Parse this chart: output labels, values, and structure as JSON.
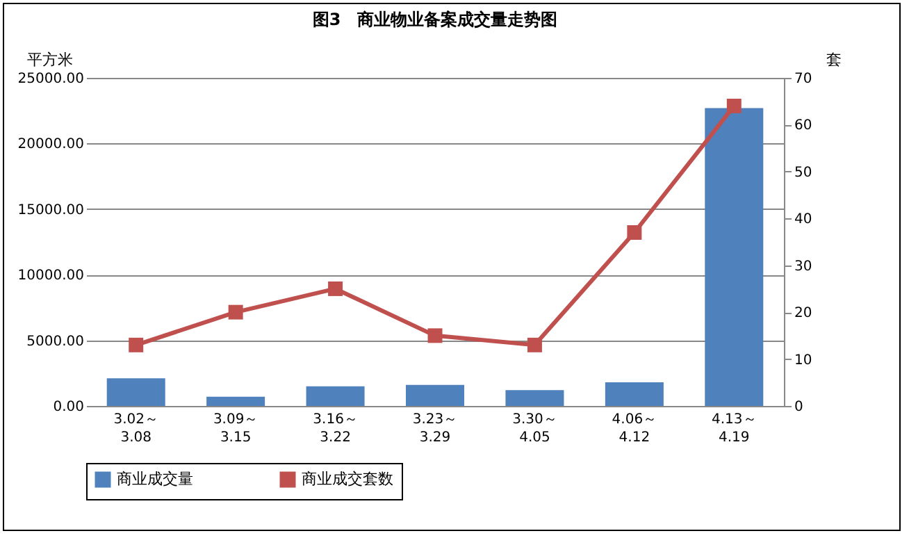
{
  "chart_data": {
    "type": "bar",
    "title": "图3　商业物业备案成交量走势图",
    "ylabel": "平方米",
    "y2label": "套",
    "categories": [
      "3.02～3.08",
      "3.09～3.15",
      "3.16～3.22",
      "3.23～3.29",
      "3.30～4.05",
      "4.06～4.12",
      "4.13～4.19"
    ],
    "series": [
      {
        "name": "商业成交量",
        "color": "#4f81bd",
        "values": [
          2100,
          700,
          1500,
          1600,
          1200,
          1800,
          22700
        ]
      },
      {
        "name": "商业成交套数",
        "type": "line",
        "axis": "y2",
        "color": "#c0504d",
        "marker": "square",
        "values": [
          13,
          20,
          25,
          15,
          13,
          37,
          64
        ]
      }
    ],
    "ylim": [
      0,
      25000
    ],
    "yticks": [
      {
        "value": 0,
        "label": "0.00"
      },
      {
        "value": 5000,
        "label": "5000.00"
      },
      {
        "value": 10000,
        "label": "10000.00"
      },
      {
        "value": 15000,
        "label": "15000.00"
      },
      {
        "value": 20000,
        "label": "20000.00"
      },
      {
        "value": 25000,
        "label": "25000.00"
      }
    ],
    "y2lim": [
      0,
      70
    ],
    "y2ticks": [
      0,
      10,
      20,
      30,
      40,
      50,
      60,
      70
    ],
    "grid": "y",
    "legend": "bottom"
  }
}
